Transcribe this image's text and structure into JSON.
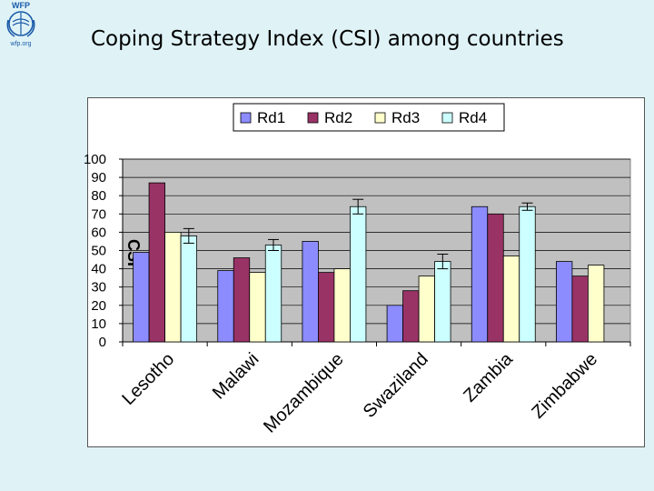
{
  "title": "Coping Strategy Index (CSI) among countries",
  "logo": {
    "name": "WFP",
    "url": "wfp.org"
  },
  "colors": {
    "background": "#dff3f7",
    "plot_area": "#c0c0c0",
    "series": [
      "#8c8cff",
      "#993366",
      "#ffffcc",
      "#ccffff"
    ]
  },
  "chart_data": {
    "type": "bar",
    "ylabel": "CSI",
    "xlabel": "",
    "ylim": [
      0,
      100
    ],
    "yticks": [
      0,
      10,
      20,
      30,
      40,
      50,
      60,
      70,
      80,
      90,
      100
    ],
    "grid": true,
    "legend": "top",
    "categories": [
      "Lesotho",
      "Malawi",
      "Mozambique",
      "Swaziland",
      "Zambia",
      "Zimbabwe"
    ],
    "series": [
      {
        "name": "Rd1",
        "values": [
          49,
          39,
          55,
          20,
          74,
          44
        ]
      },
      {
        "name": "Rd2",
        "values": [
          87,
          46,
          38,
          28,
          70,
          36
        ]
      },
      {
        "name": "Rd3",
        "values": [
          60,
          38,
          40,
          36,
          47,
          42
        ]
      },
      {
        "name": "Rd4",
        "values": [
          58,
          53,
          74,
          44,
          74,
          null
        ]
      }
    ],
    "error_bars": {
      "series": "Rd4",
      "values": [
        4,
        3,
        4,
        4,
        2,
        null
      ]
    }
  }
}
